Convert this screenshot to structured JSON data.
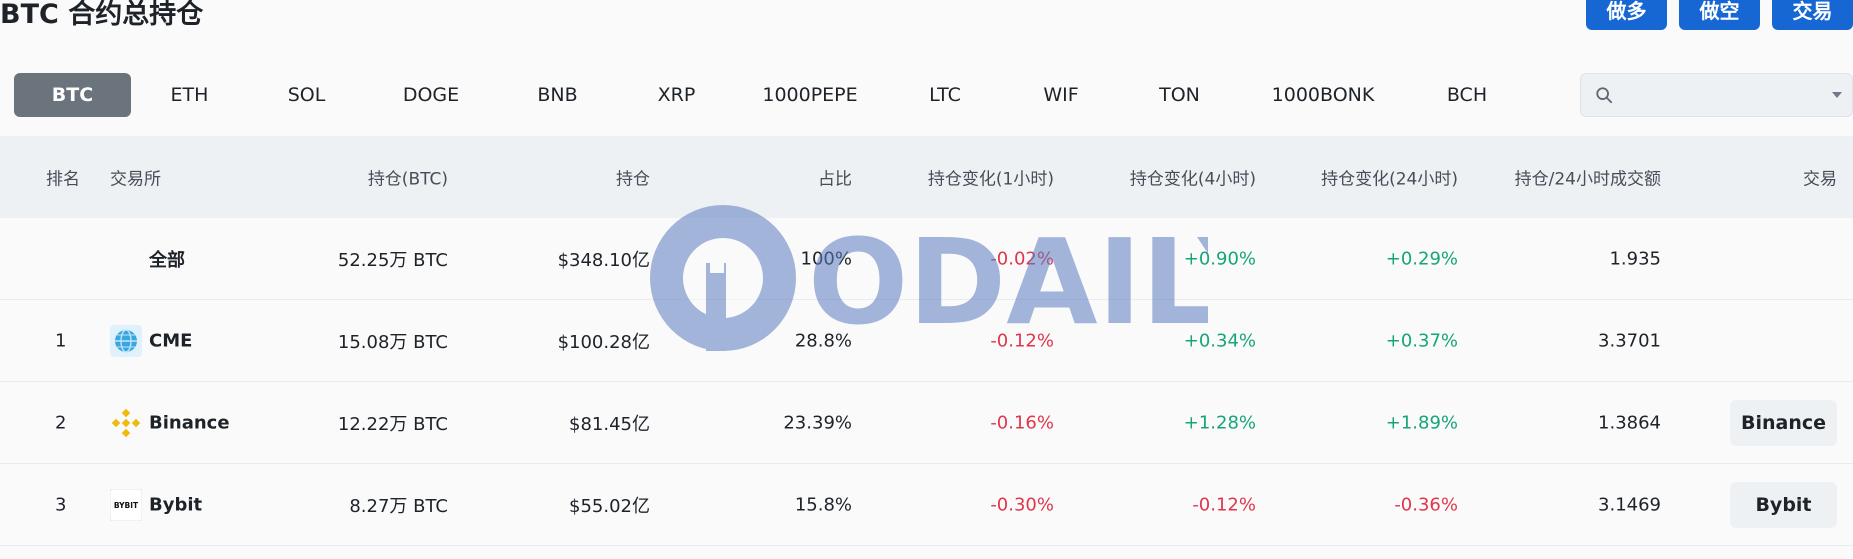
{
  "page": {
    "title": "BTC 合约总持仓"
  },
  "actions": [
    {
      "label": "做多"
    },
    {
      "label": "做空"
    },
    {
      "label": "交易"
    }
  ],
  "tabs": [
    "BTC",
    "ETH",
    "SOL",
    "DOGE",
    "BNB",
    "XRP",
    "1000PEPE",
    "LTC",
    "WIF",
    "TON",
    "1000BONK",
    "BCH"
  ],
  "active_tab": "BTC",
  "search": {
    "placeholder": "",
    "value": ""
  },
  "table": {
    "headers": {
      "rank": "排名",
      "exchange": "交易所",
      "oi_coin": "持仓(BTC)",
      "oi_usd": "持仓",
      "share": "占比",
      "chg_1h": "持仓变化(1小时)",
      "chg_4h": "持仓变化(4小时)",
      "chg_24h": "持仓变化(24小时)",
      "oi_vol": "持仓/24小时成交额",
      "trade": "交易"
    },
    "rows": [
      {
        "rank": "",
        "exchange": "全部",
        "oi_coin": "52.25万 BTC",
        "oi_usd": "$348.10亿",
        "share": "100%",
        "chg_1h": "-0.02%",
        "chg_4h": "+0.90%",
        "chg_24h": "+0.29%",
        "oi_vol": "1.935",
        "trade": ""
      },
      {
        "rank": "1",
        "exchange": "CME",
        "oi_coin": "15.08万 BTC",
        "oi_usd": "$100.28亿",
        "share": "28.8%",
        "chg_1h": "-0.12%",
        "chg_4h": "+0.34%",
        "chg_24h": "+0.37%",
        "oi_vol": "3.3701",
        "trade": ""
      },
      {
        "rank": "2",
        "exchange": "Binance",
        "oi_coin": "12.22万 BTC",
        "oi_usd": "$81.45亿",
        "share": "23.39%",
        "chg_1h": "-0.16%",
        "chg_4h": "+1.28%",
        "chg_24h": "+1.89%",
        "oi_vol": "1.3864",
        "trade": "Binance"
      },
      {
        "rank": "3",
        "exchange": "Bybit",
        "oi_coin": "8.27万 BTC",
        "oi_usd": "$55.02亿",
        "share": "15.8%",
        "chg_1h": "-0.30%",
        "chg_4h": "-0.12%",
        "chg_24h": "-0.36%",
        "oi_vol": "3.1469",
        "trade": "Bybit"
      }
    ]
  },
  "logos": {
    "cme": "globe-logo-icon",
    "binance": "binance-logo-icon",
    "bybit": "bybit-logo-icon",
    "bybit_text": "BYBIT"
  },
  "watermark": {
    "text": "ODAILY"
  },
  "colors": {
    "primary": "#1666d3",
    "negative": "#e0364c",
    "positive": "#16a57a",
    "active_tab": "#6b737d"
  }
}
